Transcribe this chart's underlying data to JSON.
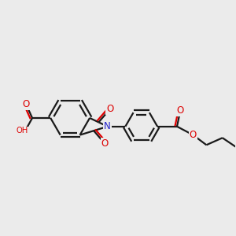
{
  "bg_color": "#ebebeb",
  "bond_color": "#1a1a1a",
  "o_color": "#dd0000",
  "n_color": "#2222cc",
  "h_color": "#888888",
  "lw": 1.6,
  "fs": 8.5,
  "fss": 7.2,
  "xlim": [
    0.0,
    10.5
  ],
  "ylim": [
    2.0,
    8.0
  ]
}
